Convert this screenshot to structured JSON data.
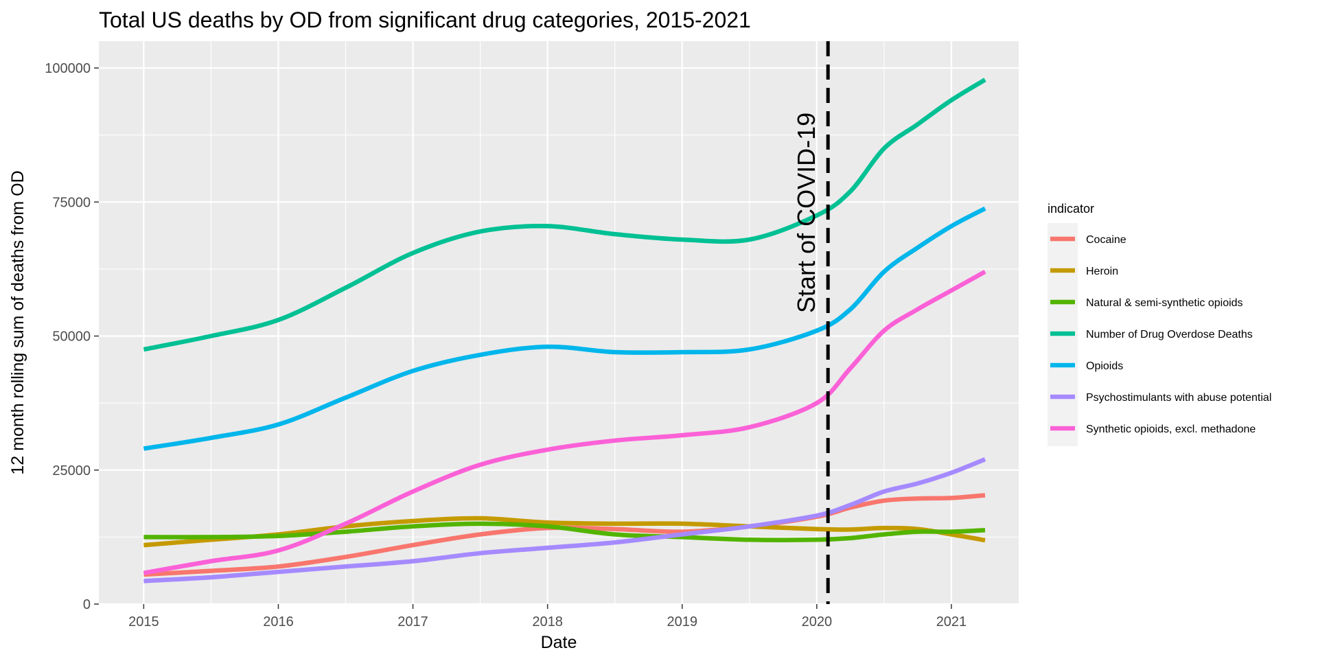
{
  "chart_data": {
    "type": "line",
    "title": "Total US deaths by OD from significant drug categories, 2015-2021",
    "xlabel": "Date",
    "ylabel": "12 month rolling sum of deaths from OD",
    "xlim": [
      "2014-09",
      "2021-07"
    ],
    "ylim": [
      0,
      105000
    ],
    "x_ticks": [
      "2015",
      "2016",
      "2017",
      "2018",
      "2019",
      "2020",
      "2021"
    ],
    "y_ticks": [
      0,
      25000,
      50000,
      75000,
      100000
    ],
    "y_tick_labels": [
      "0",
      "25000",
      "50000",
      "75000",
      "100000"
    ],
    "grid": true,
    "legend": {
      "title": "indicator",
      "placement": "right"
    },
    "annotation": {
      "text": "Start of COVID-19",
      "x": "2020-02"
    },
    "x": [
      "2015-01",
      "2015-07",
      "2016-01",
      "2016-07",
      "2017-01",
      "2017-07",
      "2018-01",
      "2018-07",
      "2019-01",
      "2019-07",
      "2020-01",
      "2020-04",
      "2020-07",
      "2020-10",
      "2021-01",
      "2021-04"
    ],
    "series": [
      {
        "name": "Cocaine",
        "color": "#F8766D",
        "values": [
          5500,
          6200,
          7000,
          8800,
          11000,
          13000,
          14200,
          14000,
          13500,
          14500,
          16300,
          18000,
          19300,
          19700,
          19800,
          20300
        ]
      },
      {
        "name": "Heroin",
        "color": "#C49A00",
        "values": [
          11000,
          12000,
          13000,
          14500,
          15500,
          16000,
          15200,
          15000,
          15000,
          14500,
          14000,
          13900,
          14200,
          14000,
          13000,
          11900
        ]
      },
      {
        "name": "Natural & semi-synthetic opioids",
        "color": "#53B400",
        "values": [
          12500,
          12500,
          12700,
          13500,
          14500,
          15000,
          14500,
          13000,
          12500,
          12000,
          12000,
          12300,
          13000,
          13500,
          13500,
          13800
        ]
      },
      {
        "name": "Number of Drug Overdose Deaths",
        "color": "#00C094",
        "values": [
          47500,
          50000,
          53000,
          59000,
          65500,
          69500,
          70500,
          69000,
          68000,
          68000,
          72500,
          77000,
          85000,
          89500,
          94000,
          97800
        ]
      },
      {
        "name": "Opioids",
        "color": "#00B6EB",
        "values": [
          29000,
          31000,
          33500,
          38500,
          43500,
          46500,
          48000,
          47000,
          47000,
          47500,
          51000,
          55000,
          62000,
          66500,
          70500,
          73800
        ]
      },
      {
        "name": "Psychostimulants with abuse potential",
        "color": "#A58AFF",
        "values": [
          4300,
          5000,
          6000,
          7000,
          8000,
          9500,
          10500,
          11500,
          13000,
          14500,
          16500,
          18500,
          21000,
          22500,
          24500,
          27000
        ]
      },
      {
        "name": "Synthetic opioids, excl. methadone",
        "color": "#FB61D7",
        "values": [
          5800,
          8000,
          10000,
          15000,
          21000,
          26000,
          28800,
          30500,
          31500,
          33000,
          37500,
          44000,
          51000,
          55000,
          58500,
          62000
        ]
      }
    ]
  }
}
